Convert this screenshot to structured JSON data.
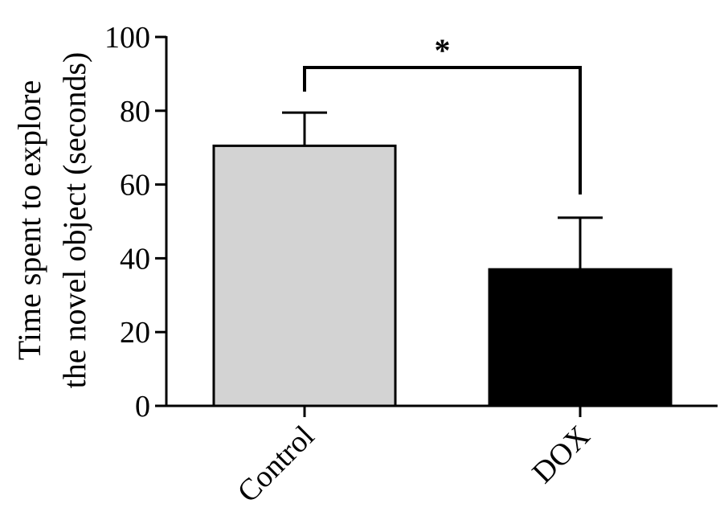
{
  "chart_data": {
    "type": "bar",
    "title": "",
    "xlabel": "",
    "ylabel_lines": [
      "Time spent to explore",
      "the novel object (seconds)"
    ],
    "categories": [
      "Control",
      "DOX"
    ],
    "values": [
      70.5,
      37
    ],
    "errors": [
      9,
      14
    ],
    "bar_colors": [
      "#d3d3d3",
      "#000000"
    ],
    "ylim": [
      0,
      100
    ],
    "yticks": [
      0,
      20,
      40,
      60,
      80,
      100
    ],
    "ytick_labels": [
      "0",
      "20",
      "40",
      "60",
      "80",
      "100"
    ],
    "grid": false,
    "legend": "none",
    "significance": {
      "from": "Control",
      "to": "DOX",
      "label": "*"
    }
  }
}
